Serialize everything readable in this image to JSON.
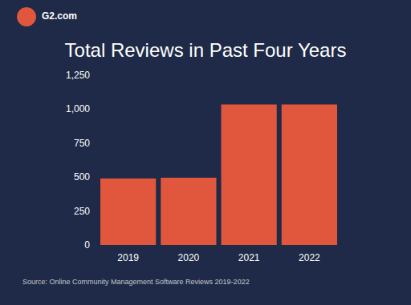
{
  "chart_data": {
    "type": "bar",
    "title": "Total Reviews in Past Four Years",
    "site": "G2.com",
    "source": "Source: Online Community Management Software Reviews 2019-2022",
    "categories": [
      "2019",
      "2020",
      "2021",
      "2022"
    ],
    "values": [
      490,
      495,
      1035,
      1035
    ],
    "color": "#e0573d",
    "ylim": [
      0,
      1250
    ],
    "yticks": [
      0,
      250,
      500,
      750,
      {
        "value": 1000,
        "label": "1,000"
      },
      {
        "value": 1250,
        "label": "1,250"
      }
    ],
    "grid": false
  }
}
